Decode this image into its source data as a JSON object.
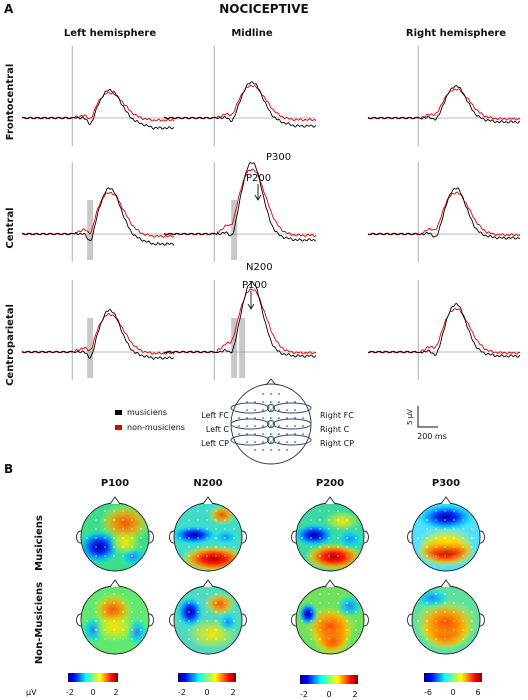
{
  "figure": {
    "title": "NOCICEPTIVE",
    "panel_a_letter": "A",
    "panel_b_letter": "B"
  },
  "panel_a": {
    "column_headers": [
      "Left hemisphere",
      "Midline",
      "Right hemisphere"
    ],
    "row_labels": [
      "Frontocentral",
      "Central",
      "Centroparietal"
    ],
    "peak_labels": {
      "p300": "P300",
      "p200": "P200",
      "n200": "N200",
      "p100": "P100"
    },
    "legend": [
      {
        "label": "musiciens",
        "color": "#000000"
      },
      {
        "label": "non-musiciens",
        "color": "#e00000"
      }
    ],
    "electrode_map": {
      "left_labels": [
        "Left FC",
        "Left C",
        "Left CP"
      ],
      "right_labels": [
        "Right FC",
        "Right C",
        "Right CP"
      ]
    },
    "scale_bar": {
      "amplitude": "5 µV",
      "time": "200 ms"
    }
  },
  "panel_b": {
    "component_headers": [
      "P100",
      "N200",
      "P200",
      "P300"
    ],
    "group_labels": [
      "Musiciens",
      "Non-Musiciens"
    ],
    "colorbars": [
      {
        "unit": "µV",
        "ticks": [
          "-2",
          "0",
          "2"
        ]
      },
      {
        "ticks": [
          "-2",
          "0",
          "2"
        ]
      },
      {
        "ticks": [
          "-2",
          "0",
          "2"
        ]
      },
      {
        "ticks": [
          "-6",
          "0",
          "6"
        ]
      }
    ]
  },
  "colors": {
    "musicians": "#000000",
    "non_musicians": "#e00000",
    "highlight": "#c8c8c8"
  }
}
